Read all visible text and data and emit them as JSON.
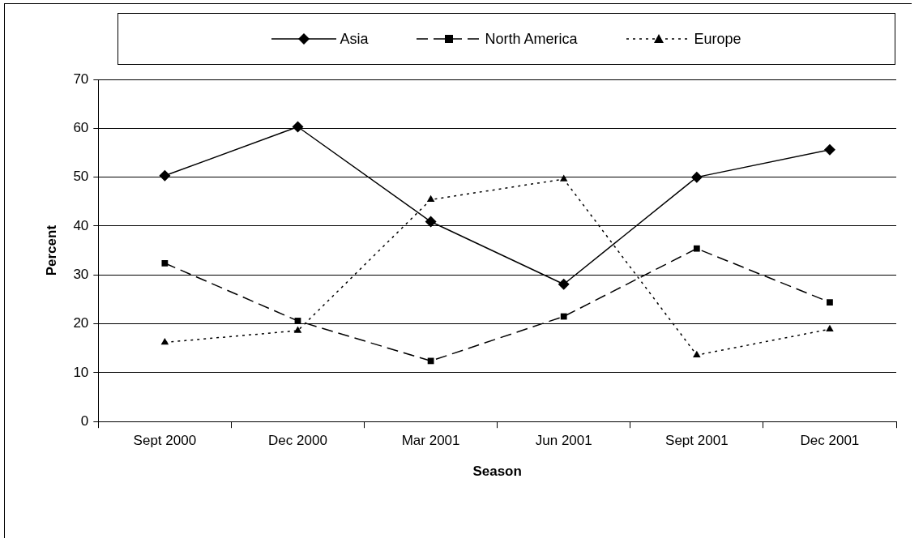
{
  "chart_data": {
    "type": "line",
    "xlabel": "Season",
    "ylabel": "Percent",
    "categories": [
      "Sept 2000",
      "Dec 2000",
      "Mar 2001",
      "Jun 2001",
      "Sept 2001",
      "Dec 2001"
    ],
    "series": [
      {
        "name": "Asia",
        "color": "#000000",
        "marker": "diamond",
        "line_style": "solid",
        "values": [
          50.3,
          60.3,
          40.9,
          28.1,
          50.0,
          55.6
        ]
      },
      {
        "name": "North America",
        "color": "#000000",
        "marker": "square",
        "line_style": "dashed",
        "values": [
          32.4,
          20.6,
          12.4,
          21.5,
          35.4,
          24.4
        ]
      },
      {
        "name": "Europe",
        "color": "#000000",
        "marker": "triangle",
        "line_style": "dotted",
        "values": [
          16.2,
          18.6,
          45.4,
          49.6,
          13.6,
          18.9
        ]
      }
    ],
    "ylim": [
      0,
      70
    ],
    "yticks": [
      0,
      10,
      20,
      30,
      40,
      50,
      60,
      70
    ],
    "grid": "y",
    "legend": "top"
  }
}
